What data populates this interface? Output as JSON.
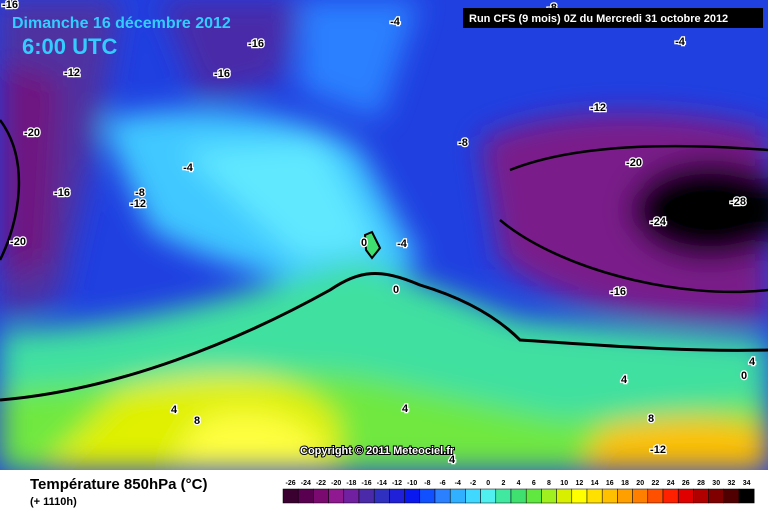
{
  "header": {
    "date": "Dimanche 16 décembre 2012",
    "time": "6:00 UTC",
    "run": "Run CFS (9 mois) 0Z du Mercredi 31 octobre 2012"
  },
  "copyright": "Copyright © 2011 Meteociel.fr",
  "map": {
    "contour_labels": [
      -16,
      -8,
      -4,
      -16,
      -4,
      -12,
      -16,
      -12,
      -20,
      -8,
      -4,
      -20,
      -8,
      -16,
      -12,
      -28,
      -24,
      -20,
      0,
      -4,
      0,
      -16,
      4,
      0,
      4,
      4,
      4,
      8,
      8,
      -12,
      4
    ]
  },
  "footer": {
    "title": "Température 850hPa (°C)",
    "lead": "(+ 1110h)"
  },
  "scale": {
    "ticks": [
      -26,
      -24,
      -22,
      -20,
      -18,
      -16,
      -14,
      -12,
      -10,
      -8,
      -6,
      -4,
      -2,
      0,
      2,
      4,
      6,
      8,
      10,
      12,
      14,
      16,
      18,
      20,
      22,
      24,
      26,
      28,
      30,
      32,
      34
    ],
    "colors": [
      "#3a0030",
      "#5a0050",
      "#7a0a70",
      "#901890",
      "#7020a0",
      "#4a2aa8",
      "#3030c0",
      "#2020d8",
      "#0a18f0",
      "#1050ff",
      "#2a80ff",
      "#30b0ff",
      "#40d8ff",
      "#50f0f0",
      "#40e8a0",
      "#40e070",
      "#60e840",
      "#a0f020",
      "#d8f000",
      "#ffff00",
      "#ffe000",
      "#ffc000",
      "#ffa000",
      "#ff8000",
      "#ff5000",
      "#ff2000",
      "#e00000",
      "#b00000",
      "#800000",
      "#500000",
      "#000000"
    ]
  }
}
